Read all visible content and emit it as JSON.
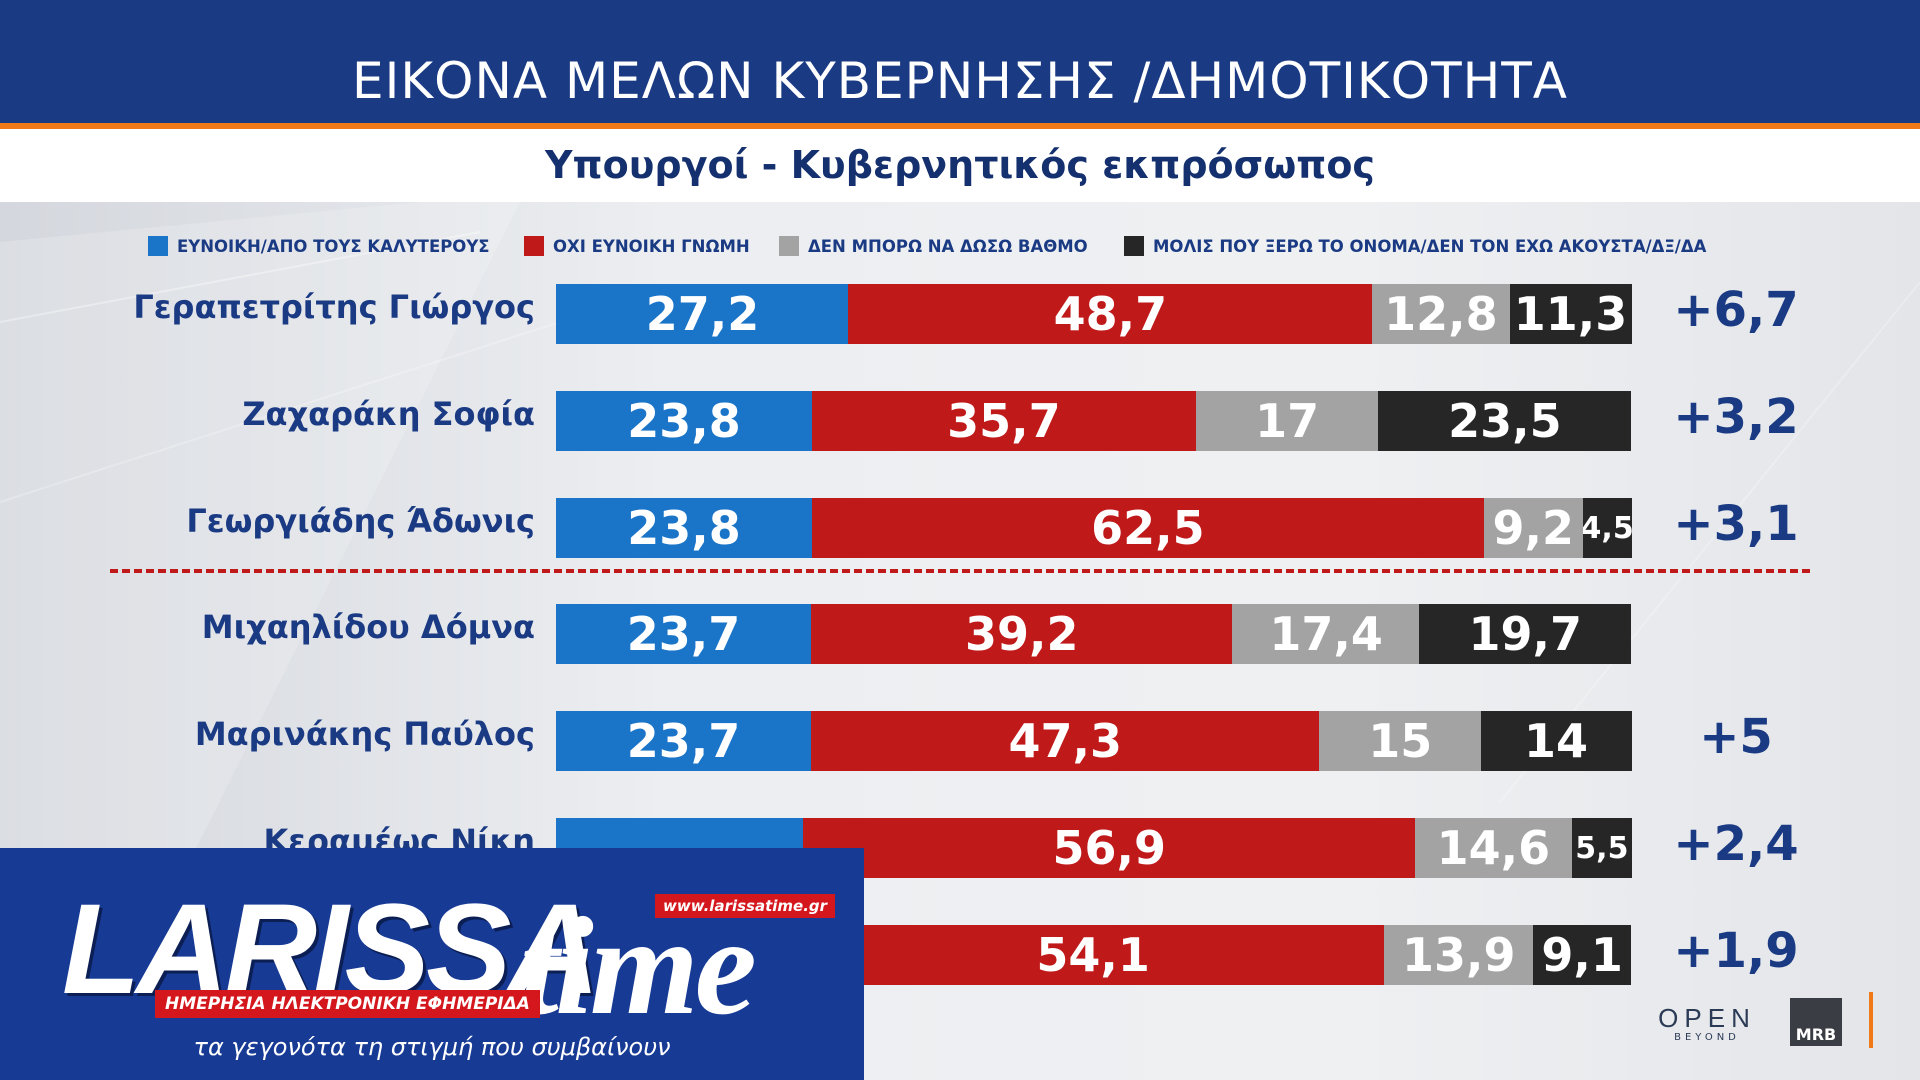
{
  "header": {
    "title": "ΕΙΚΟΝΑ ΜΕΛΩΝ ΚΥΒΕΡΝΗΣΗΣ /ΔΗΜΟΤΙΚΟΤΗΤΑ"
  },
  "subtitle": "Υπουργοί - Κυβερνητικός εκπρόσωπος",
  "legend": [
    {
      "label": "ΕΥΝΟΙΚΗ/ΑΠΟ ΤΟΥΣ ΚΑΛΥΤΕΡΟΥΣ",
      "color": "#1a75c9"
    },
    {
      "label": "ΟΧΙ ΕΥΝΟΙΚΗ ΓΝΩΜΗ",
      "color": "#c0191a"
    },
    {
      "label": "ΔΕΝ ΜΠΟΡΩ ΝΑ ΔΩΣΩ ΒΑΘΜΟ",
      "color": "#a3a3a3"
    },
    {
      "label": "ΜΟΛΙΣ ΠΟΥ ΞΕΡΩ ΤΟ ΟΝΟΜΑ/ΔΕΝ ΤΟΝ ΕΧΩ ΑΚΟΥΣΤΑ/ΔΞ/ΔΑ",
      "color": "#262626"
    }
  ],
  "chart_data": {
    "type": "bar",
    "stacked": true,
    "orientation": "horizontal",
    "categories": [
      "Γεραπετρίτης Γιώργος",
      "Ζαχαράκη Σοφία",
      "Γεωργιάδης Άδωνις",
      "Μιχαηλίδου Δόμνα",
      "Μαρινάκης Παύλος",
      "Κεραμέως Νίκη",
      ""
    ],
    "series": [
      {
        "name": "ΕΥΝΟΙΚΗ/ΑΠΟ ΤΟΥΣ ΚΑΛΥΤΕΡΟΥΣ",
        "values": [
          27.2,
          23.8,
          23.8,
          23.7,
          23.7,
          null,
          null
        ],
        "labels": [
          "27,2",
          "23,8",
          "23,8",
          "23,7",
          "23,7",
          "",
          ""
        ]
      },
      {
        "name": "ΟΧΙ ΕΥΝΟΙΚΗ ΓΝΩΜΗ",
        "values": [
          48.7,
          35.7,
          62.5,
          39.2,
          47.3,
          56.9,
          54.1
        ],
        "labels": [
          "48,7",
          "35,7",
          "62,5",
          "39,2",
          "47,3",
          "56,9",
          "54,1"
        ]
      },
      {
        "name": "ΔΕΝ ΜΠΟΡΩ ΝΑ ΔΩΣΩ ΒΑΘΜΟ",
        "values": [
          12.8,
          17,
          9.2,
          17.4,
          15,
          14.6,
          13.9
        ],
        "labels": [
          "12,8",
          "17",
          "9,2",
          "17,4",
          "15",
          "14,6",
          "13,9"
        ]
      },
      {
        "name": "ΜΟΛΙΣ ΠΟΥ ΞΕΡΩ ΤΟ ΟΝΟΜΑ/ΔΕΝ ΤΟΝ ΕΧΩ ΑΚΟΥΣΤΑ/ΔΞ/ΔΑ",
        "values": [
          11.3,
          23.5,
          4.5,
          19.7,
          14,
          5.5,
          9.1
        ],
        "labels": [
          "11,3",
          "23,5",
          "4,5",
          "19,7",
          "14",
          "5,5",
          "9,1"
        ]
      }
    ],
    "change_labels": [
      "+6,7",
      "+3,2",
      "+3,1",
      "",
      "+5",
      "+2,4",
      "+1,9"
    ],
    "divider_after_row": 3,
    "legend_position": "top"
  },
  "logo": {
    "brand_left": "LARISSA",
    "brand_right": "time",
    "url": "www.larissatime.gr",
    "tagline": "ΗΜΕΡΗΣΙΑ ΗΛΕΚΤΡΟΝΙΚΗ ΕΦΗΜΕΡΙΔΑ",
    "slogan": "τα γεγονότα τη στιγμή που συμβαίνουν"
  },
  "footer": {
    "open_main": "OPEN",
    "open_sub": "BEYOND",
    "mrb": "MRB"
  }
}
